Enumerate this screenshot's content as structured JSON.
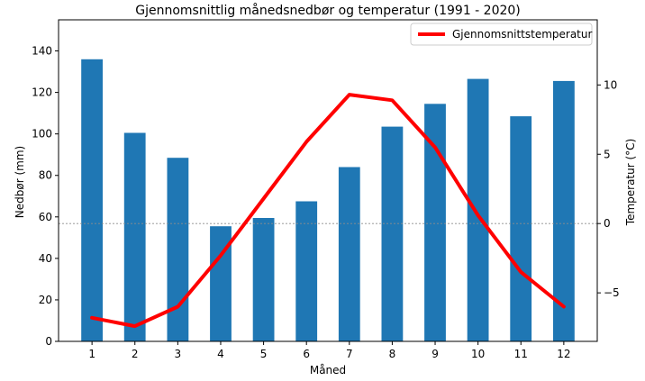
{
  "chart_data": {
    "type": "bar",
    "title": "Gjennomsnittlig månedsnedbør og temperatur (1991 - 2020)",
    "xlabel": "Måned",
    "ylabel": "Nedbør (mm)",
    "y2label": "Temperatur (°C)",
    "categories": [
      "1",
      "2",
      "3",
      "4",
      "5",
      "6",
      "7",
      "8",
      "9",
      "10",
      "11",
      "12"
    ],
    "precip_series": {
      "name": "Nedbør",
      "color": "#1f77b4",
      "values": [
        136,
        100.5,
        88.5,
        55.5,
        59.5,
        67.5,
        84,
        103.5,
        114.5,
        126.5,
        108.5,
        125.5
      ]
    },
    "temp_series": {
      "name": "Gjennomsnittstemperatur",
      "color": "#ff0000",
      "values": [
        -6.8,
        -7.4,
        -6.0,
        -2.3,
        1.8,
        5.9,
        9.3,
        8.9,
        5.5,
        0.6,
        -3.5,
        -6.0
      ]
    },
    "ylim": [
      0,
      155
    ],
    "y_ticks": [
      0,
      20,
      40,
      60,
      80,
      100,
      120,
      140
    ],
    "y2lim": [
      -8.5,
      14.7
    ],
    "y2_ticks": [
      -5,
      0,
      5,
      10
    ],
    "zero_line": true,
    "legend": {
      "label": "Gjennomsnittstemperatur",
      "position": "top-right"
    }
  }
}
